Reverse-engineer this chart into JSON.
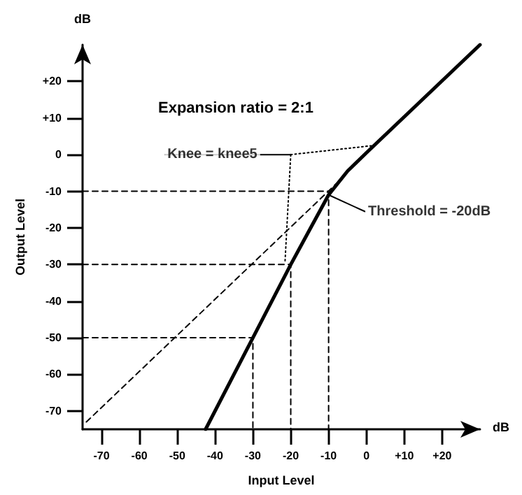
{
  "chart_data": {
    "type": "line",
    "xlabel": "Input Level",
    "ylabel": "Output Level",
    "annotations": [
      "Expansion ratio = 2:1",
      "dB",
      "dB",
      {
        "text": "Knee = knee5",
        "x": -20,
        "y": 0
      },
      {
        "text": "Threshold = -20dB",
        "x": -10,
        "y": -11
      }
    ],
    "series": [
      {
        "color": "#000000",
        "line_style": "solid",
        "x": [
          -42.5,
          -30,
          -20,
          -15,
          -10,
          -5,
          0,
          30
        ],
        "values": [
          -75,
          -50,
          -30,
          -20.5,
          -11,
          -4.5,
          0.5,
          30
        ]
      },
      {
        "color": "#000000",
        "line_style": "dashed",
        "x": [
          -74,
          -5
        ],
        "values": [
          -73,
          -5
        ]
      },
      {
        "color": "#000000",
        "line_style": "dashed",
        "x": [
          -75,
          -10,
          -10
        ],
        "values": [
          -10,
          -10,
          -75
        ]
      },
      {
        "color": "#000000",
        "line_style": "dashed",
        "x": [
          -75,
          -20,
          -20
        ],
        "values": [
          -30,
          -30,
          -75
        ]
      },
      {
        "color": "#000000",
        "line_style": "dashed",
        "x": [
          -75,
          -30,
          -30
        ],
        "values": [
          -50,
          -50,
          -75
        ]
      },
      {
        "color": "#000000",
        "line_style": "dotted",
        "x": [
          -20,
          2
        ],
        "values": [
          0,
          2.5
        ]
      },
      {
        "color": "#000000",
        "line_style": "dotted",
        "x": [
          -20,
          -21.5
        ],
        "values": [
          0,
          -29
        ]
      }
    ],
    "xlim": [
      -75,
      30
    ],
    "ylim": [
      -75,
      30
    ],
    "xticks": [
      -70,
      -60,
      -50,
      -40,
      -30,
      -20,
      -10,
      0,
      {
        "value": 10,
        "label": "+10"
      },
      {
        "value": 20,
        "label": "+20"
      }
    ],
    "yticks": [
      -70,
      -60,
      -50,
      -40,
      -30,
      -20,
      -10,
      0,
      {
        "value": 10,
        "label": "+10"
      },
      {
        "value": 20,
        "label": "+20"
      }
    ],
    "grid": false,
    "legend": false,
    "marker": "none"
  }
}
